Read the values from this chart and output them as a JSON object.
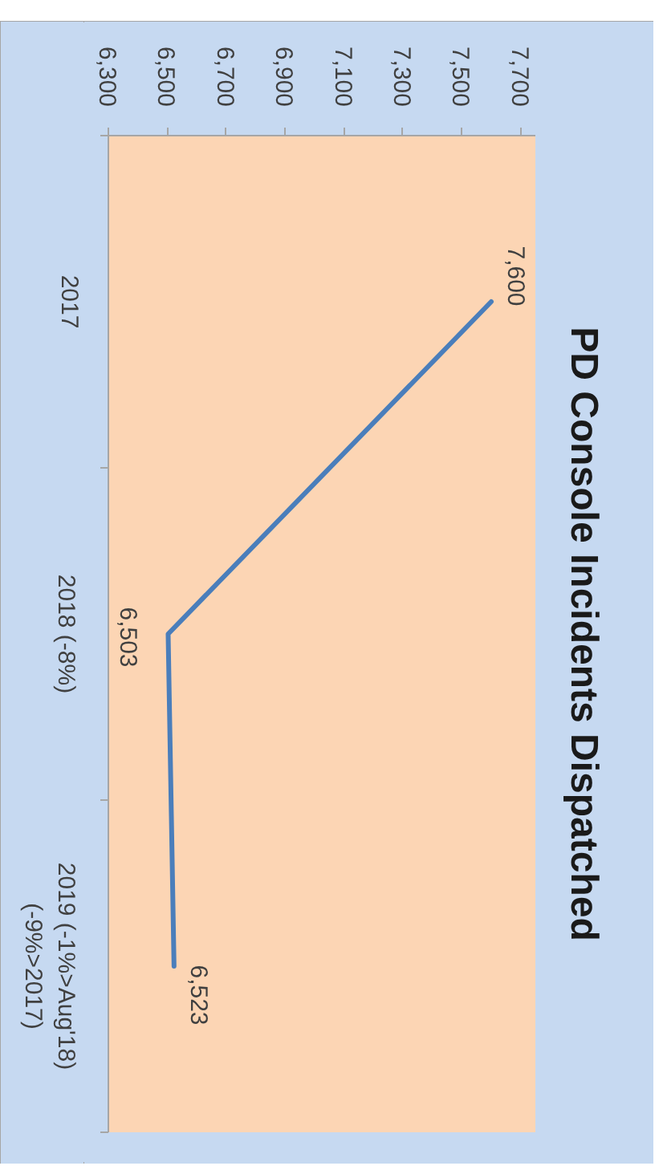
{
  "chart_data": {
    "type": "line",
    "title": "PD Console Incidents Dispatched",
    "orientation": "horizontal",
    "categories": [
      "2017",
      "2018 (-8%)",
      "2019 (-1%>Aug'18)\n(-9%>2017)"
    ],
    "values": [
      7600,
      6503,
      6523
    ],
    "color": "#4a7ebb",
    "value_labels": [
      "7,600",
      "6,503",
      "6,523"
    ],
    "xlim": [
      6300,
      7750
    ],
    "xticks": [
      {
        "value": 6300,
        "label": "6,300"
      },
      {
        "value": 6500,
        "label": "6,500"
      },
      {
        "value": 6700,
        "label": "6,700"
      },
      {
        "value": 6900,
        "label": "6,900"
      },
      {
        "value": 7100,
        "label": "7,100"
      },
      {
        "value": 7300,
        "label": "7,300"
      },
      {
        "value": 7500,
        "label": "7,500"
      },
      {
        "value": 7700,
        "label": "7,700"
      }
    ],
    "grid": false,
    "line_style": "solid"
  }
}
